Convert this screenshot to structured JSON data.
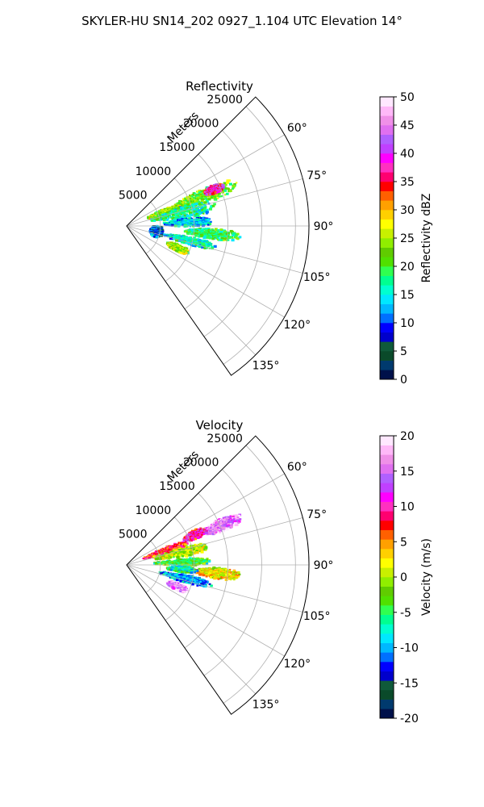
{
  "suptitle": "SKYLER-HU  SN14_202  0927_1.104 UTC Elevation 14°",
  "chart_data": [
    {
      "type": "heatmap",
      "subtype": "polar-sector-ppi",
      "title": "Reflectivity",
      "range_label": "Meters",
      "range_ticks": [
        5000,
        10000,
        15000,
        20000,
        25000
      ],
      "range_lim": [
        0,
        27000
      ],
      "azimuth_ticks": [
        "60°",
        "75°",
        "90°",
        "105°",
        "120°",
        "135°"
      ],
      "azimuth_tick_values": [
        60,
        75,
        90,
        105,
        120,
        135
      ],
      "azimuth_lim": [
        45,
        145
      ],
      "grid": true,
      "colorbar": {
        "label": "Reflectivity dBZ",
        "vmin": 0,
        "vmax": 50,
        "ticks": [
          0,
          5,
          10,
          15,
          20,
          25,
          30,
          35,
          40,
          45,
          50
        ],
        "colors": [
          "#00104a",
          "#003a6e",
          "#0a4a2a",
          "#0f5a3a",
          "#0000cc",
          "#0000ff",
          "#0070ff",
          "#00b8ff",
          "#00e8ff",
          "#00ffd0",
          "#00ff90",
          "#30ff50",
          "#50e000",
          "#60cc00",
          "#90ee00",
          "#c8f000",
          "#ffff00",
          "#ffd000",
          "#ffa000",
          "#ff6000",
          "#ff0000",
          "#ff0070",
          "#ff30c0",
          "#ff00ff",
          "#c040ff",
          "#b060ff",
          "#e070f0",
          "#f090e8",
          "#ffb8f8",
          "#ffe8ff"
        ]
      },
      "echo_cells": [
        {
          "az": [
            64,
            74
          ],
          "r": [
            7000,
            17500
          ],
          "value": 22
        },
        {
          "az": [
            65,
            70
          ],
          "r": [
            12500,
            15500
          ],
          "value": 38
        },
        {
          "az": [
            66,
            76
          ],
          "r": [
            3000,
            9000
          ],
          "value": 24
        },
        {
          "az": [
            71,
            83
          ],
          "r": [
            3500,
            13500
          ],
          "value": 17
        },
        {
          "az": [
            83,
            91
          ],
          "r": [
            5500,
            13000
          ],
          "value": 14
        },
        {
          "az": [
            92,
            99
          ],
          "r": [
            8500,
            17000
          ],
          "value": 19
        },
        {
          "az": [
            100,
            107
          ],
          "r": [
            5500,
            13500
          ],
          "value": 16
        },
        {
          "az": [
            110,
            117
          ],
          "r": [
            6500,
            10000
          ],
          "value": 24
        },
        {
          "az": [
            90,
            112
          ],
          "r": [
            3500,
            5500
          ],
          "value": 9
        }
      ]
    },
    {
      "type": "heatmap",
      "subtype": "polar-sector-ppi",
      "title": "Velocity",
      "range_label": "Meters",
      "range_ticks": [
        5000,
        10000,
        15000,
        20000,
        25000
      ],
      "range_lim": [
        0,
        27000
      ],
      "azimuth_ticks": [
        "60°",
        "75°",
        "90°",
        "105°",
        "120°",
        "135°"
      ],
      "azimuth_tick_values": [
        60,
        75,
        90,
        105,
        120,
        135
      ],
      "azimuth_lim": [
        45,
        145
      ],
      "grid": true,
      "colorbar": {
        "label": "Velocity (m/s)",
        "vmin": -20,
        "vmax": 20,
        "ticks": [
          -20,
          -15,
          -10,
          -5,
          0,
          5,
          10,
          15,
          20
        ],
        "colors": [
          "#00104a",
          "#003a6e",
          "#0a4a2a",
          "#0f5a3a",
          "#0000cc",
          "#0000ff",
          "#0070ff",
          "#00b8ff",
          "#00e8ff",
          "#00ffd0",
          "#00ff90",
          "#30ff50",
          "#50e000",
          "#60cc00",
          "#90ee00",
          "#c8f000",
          "#ffff00",
          "#ffd000",
          "#ffa000",
          "#ff6000",
          "#ff0000",
          "#ff0070",
          "#ff30c0",
          "#ff00ff",
          "#c040ff",
          "#b060ff",
          "#e070f0",
          "#f090e8",
          "#ffb8f8",
          "#ffe8ff"
        ]
      },
      "echo_cells": [
        {
          "az": [
            64,
            71
          ],
          "r": [
            12000,
            18500
          ],
          "value": 15
        },
        {
          "az": [
            63,
            70
          ],
          "r": [
            9000,
            13000
          ],
          "value": 10
        },
        {
          "az": [
            66,
            75
          ],
          "r": [
            2500,
            9500
          ],
          "value": 7
        },
        {
          "az": [
            73,
            82
          ],
          "r": [
            4000,
            12500
          ],
          "value": 0
        },
        {
          "az": [
            84,
            91
          ],
          "r": [
            4000,
            12500
          ],
          "value": -4
        },
        {
          "az": [
            92,
            99
          ],
          "r": [
            10000,
            17000
          ],
          "value": 2
        },
        {
          "az": [
            92,
            98
          ],
          "r": [
            6000,
            10500
          ],
          "value": -7
        },
        {
          "az": [
            100,
            107
          ],
          "r": [
            5000,
            13000
          ],
          "value": -10
        },
        {
          "az": [
            110,
            117
          ],
          "r": [
            6500,
            10000
          ],
          "value": 16
        }
      ]
    }
  ]
}
